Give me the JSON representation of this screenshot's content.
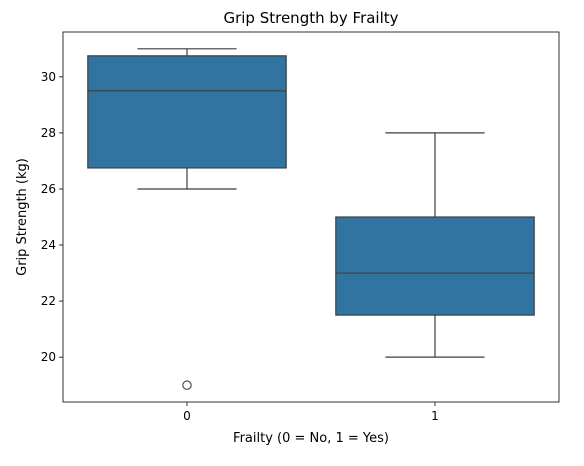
{
  "chart_data": {
    "type": "box",
    "title": "Grip Strength by Frailty",
    "xlabel": "Frailty (0 = No, 1 = Yes)",
    "ylabel": "Grip Strength (kg)",
    "categories": [
      "0",
      "1"
    ],
    "yticks": [
      20,
      22,
      24,
      26,
      28,
      30
    ],
    "ylim": [
      18.4,
      31.6
    ],
    "grid": false,
    "box_color": "#3274a1",
    "line_color": "#3f3f3f",
    "boxes": [
      {
        "category": "0",
        "whisker_low": 26,
        "q1": 26.75,
        "median": 29.5,
        "q3": 30.75,
        "whisker_high": 31,
        "outliers": [
          19
        ]
      },
      {
        "category": "1",
        "whisker_low": 20,
        "q1": 21.5,
        "median": 23,
        "q3": 25,
        "whisker_high": 28,
        "outliers": []
      }
    ]
  }
}
